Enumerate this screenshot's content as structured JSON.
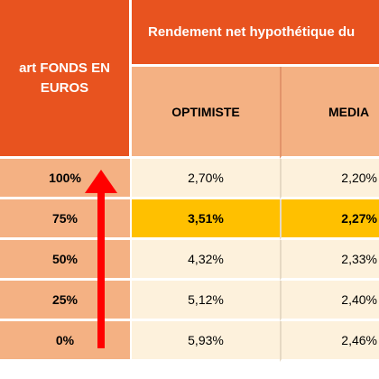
{
  "header": {
    "left_title_line1": "art FONDS EN",
    "left_title_line2": "EUROS",
    "top_title": "Rendement net hypothétique du",
    "col_optimiste": "OPTIMISTE",
    "col_median": "MEDIA"
  },
  "rows": [
    {
      "part": "100%",
      "optimiste": "2,70%",
      "median": "2,20%",
      "highlight": false
    },
    {
      "part": "75%",
      "optimiste": "3,51%",
      "median": "2,27%",
      "highlight": true
    },
    {
      "part": "50%",
      "optimiste": "4,32%",
      "median": "2,33%",
      "highlight": false
    },
    {
      "part": "25%",
      "optimiste": "5,12%",
      "median": "2,40%",
      "highlight": false
    },
    {
      "part": "0%",
      "optimiste": "5,93%",
      "median": "2,46%",
      "highlight": false
    }
  ],
  "arrow": {
    "icon": "up-arrow-icon",
    "color": "#ff0000"
  },
  "colors": {
    "header_orange": "#e8531f",
    "subheader_salmon": "#f4b183",
    "value_cream": "#fdf1dc",
    "highlight_gold": "#ffc000"
  }
}
